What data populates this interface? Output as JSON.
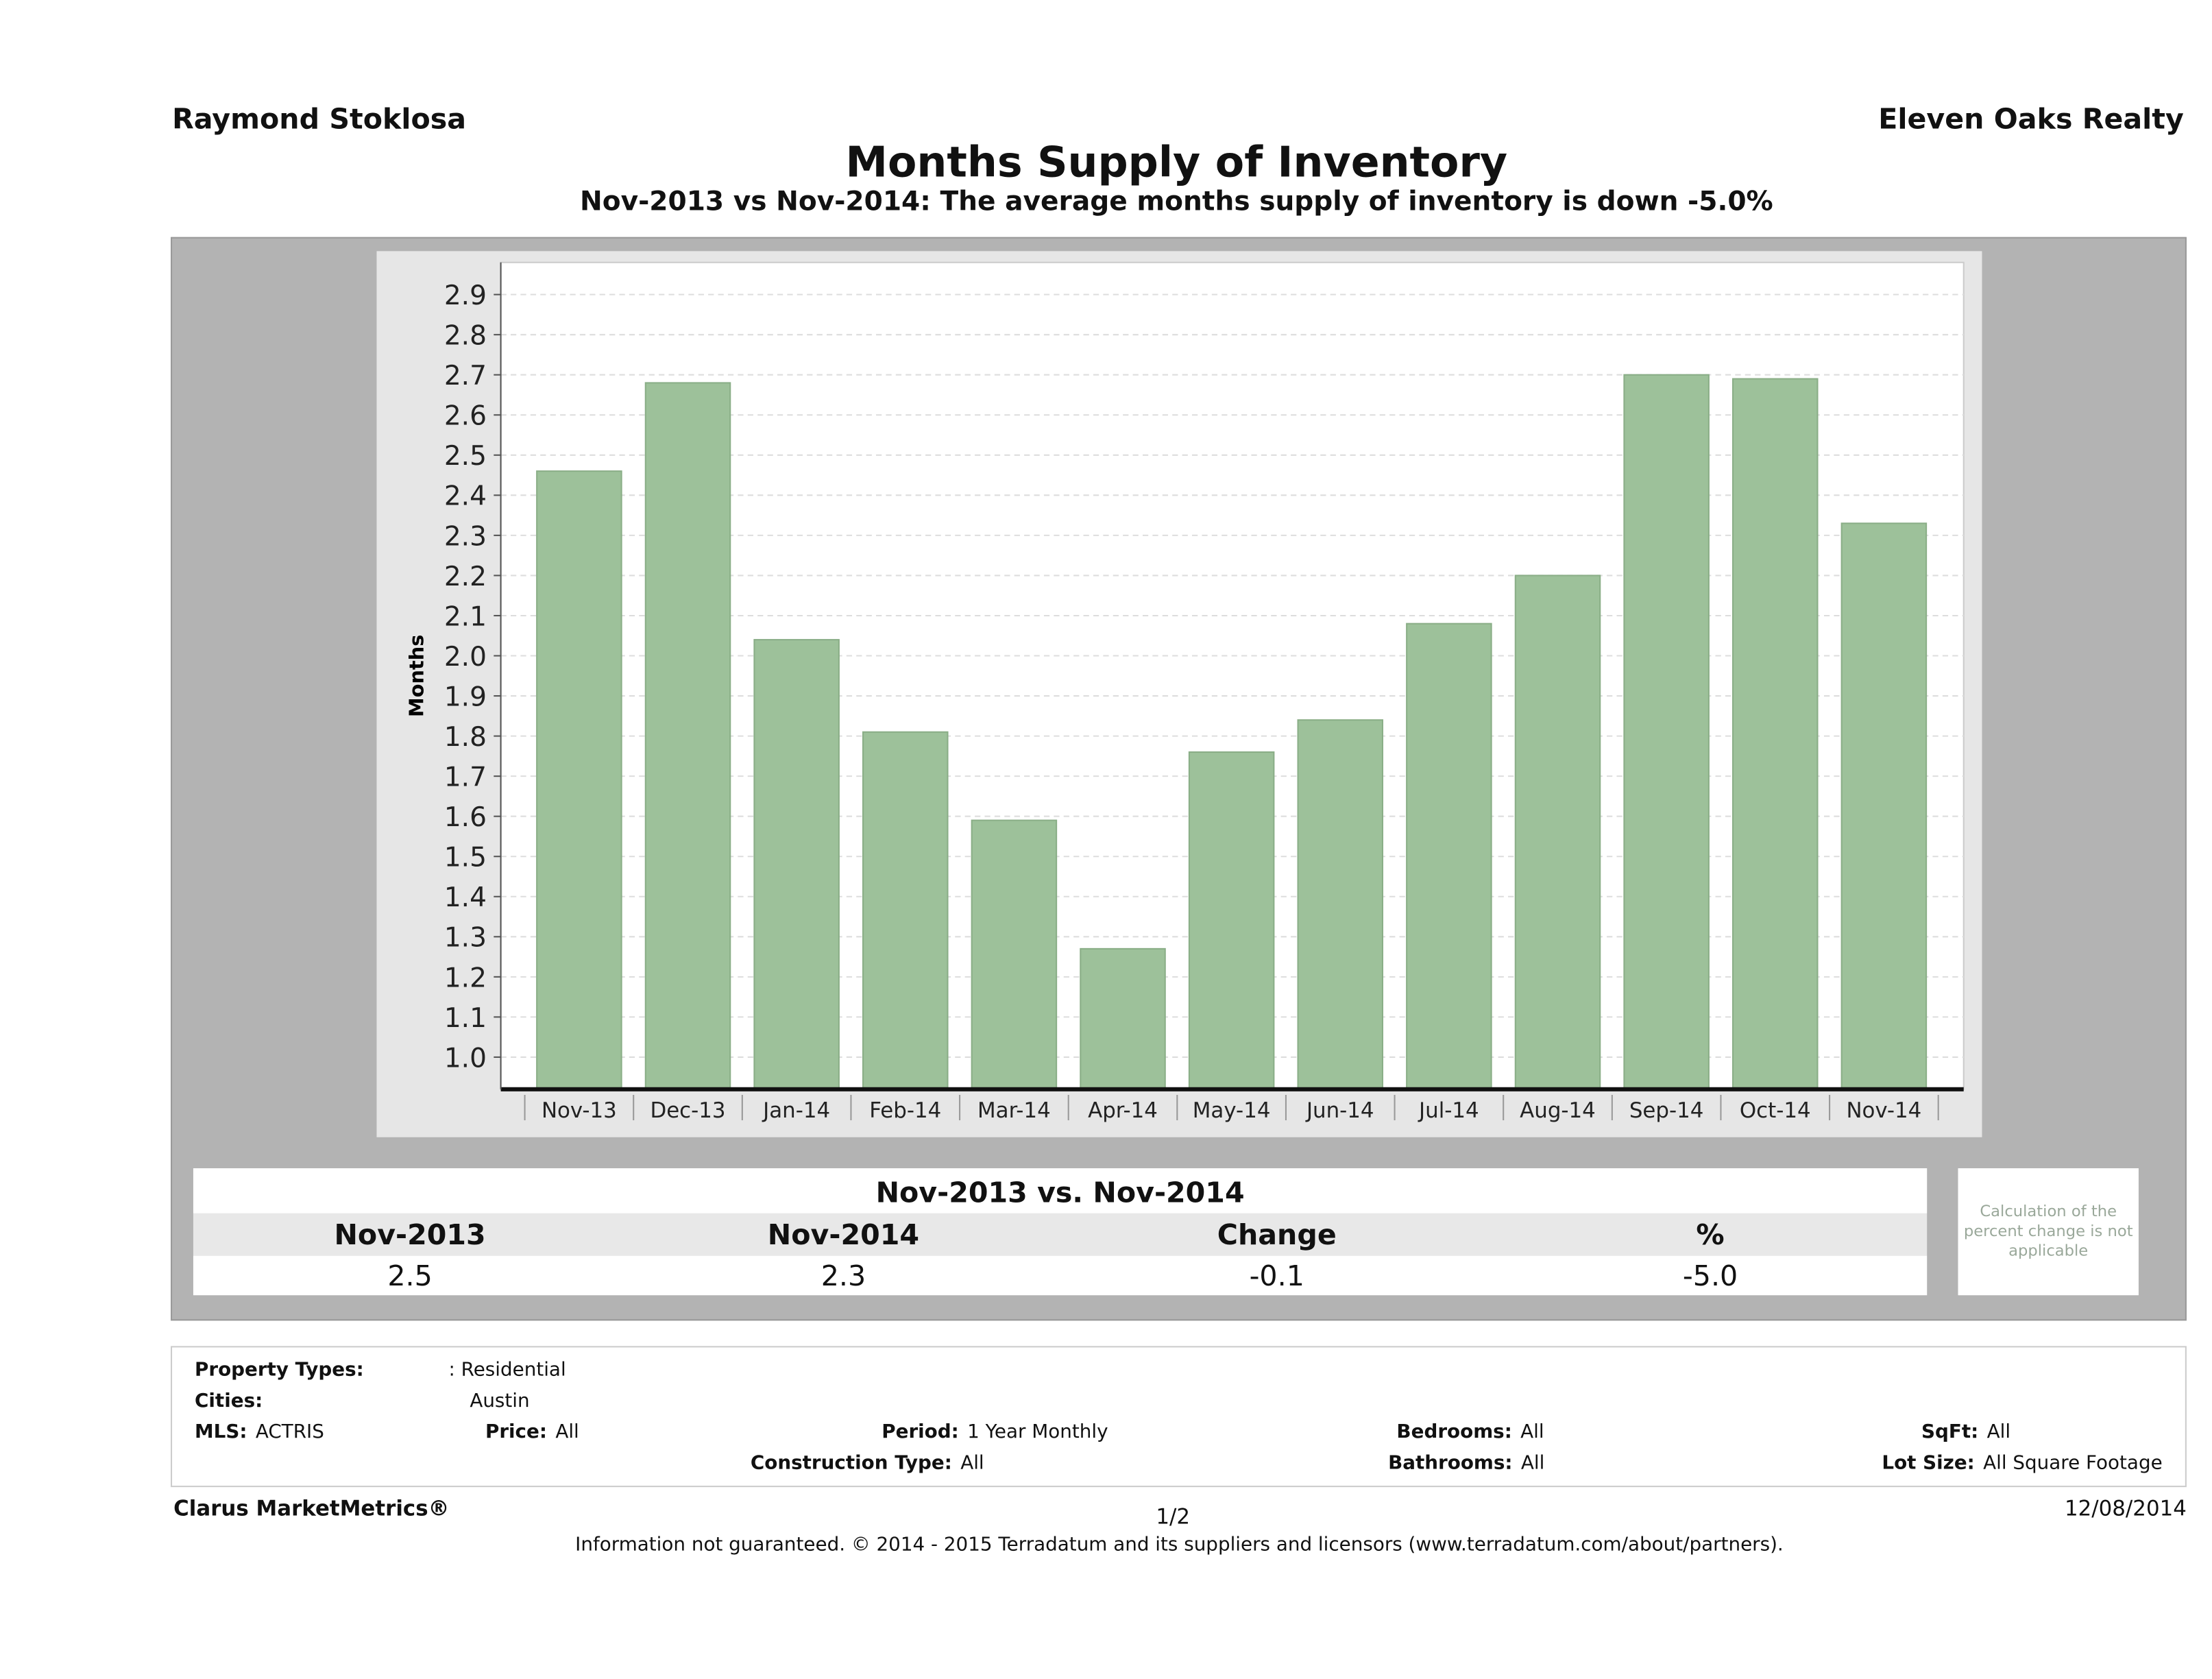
{
  "header": {
    "agent": "Raymond Stoklosa",
    "office": "Eleven Oaks Realty",
    "title": "Months Supply of Inventory",
    "subtitle": "Nov-2013 vs Nov-2014: The average months supply of inventory is down -5.0%"
  },
  "chart_data": {
    "type": "bar",
    "title": "Months Supply of Inventory",
    "xlabel": "",
    "ylabel": "Months",
    "categories": [
      "Nov-13",
      "Dec-13",
      "Jan-14",
      "Feb-14",
      "Mar-14",
      "Apr-14",
      "May-14",
      "Jun-14",
      "Jul-14",
      "Aug-14",
      "Sep-14",
      "Oct-14",
      "Nov-14"
    ],
    "values": [
      2.46,
      2.68,
      2.04,
      1.81,
      1.59,
      1.27,
      1.76,
      1.84,
      2.08,
      2.2,
      2.7,
      2.69,
      2.33
    ],
    "ylim": [
      0.92,
      2.98
    ],
    "yticks": [
      "1.0",
      "1.1",
      "1.2",
      "1.3",
      "1.4",
      "1.5",
      "1.6",
      "1.7",
      "1.8",
      "1.9",
      "2.0",
      "2.1",
      "2.2",
      "2.3",
      "2.4",
      "2.5",
      "2.6",
      "2.7",
      "2.8",
      "2.9"
    ],
    "grid": true,
    "bar_color": "#9dc19a"
  },
  "summary": {
    "heading": "Nov-2013 vs. Nov-2014",
    "labels": [
      "Nov-2013",
      "Nov-2014",
      "Change",
      "%"
    ],
    "values": [
      "2.5",
      "2.3",
      "-0.1",
      "-5.0"
    ],
    "note": "Calculation of the percent change is not applicable"
  },
  "criteria": {
    "property_types_label": "Property Types:",
    "property_types": ": Residential",
    "cities_label": "Cities:",
    "cities": "Austin",
    "mls_label": "MLS:",
    "mls": "ACTRIS",
    "price_label": "Price:",
    "price": "All",
    "period_label": "Period:",
    "period": "1 Year Monthly",
    "construction_label": "Construction Type:",
    "construction": "All",
    "bedrooms_label": "Bedrooms:",
    "bedrooms": "All",
    "bathrooms_label": "Bathrooms:",
    "bathrooms": "All",
    "sqft_label": "SqFt:",
    "sqft": "All",
    "lot_label": "Lot Size:",
    "lot": "All Square Footage"
  },
  "footer": {
    "brand": "Clarus MarketMetrics®",
    "page": "1/2",
    "date": "12/08/2014",
    "disclaimer": "Information not guaranteed. © 2014 - 2015 Terradatum and its suppliers and licensors (www.terradatum.com/about/partners)."
  }
}
